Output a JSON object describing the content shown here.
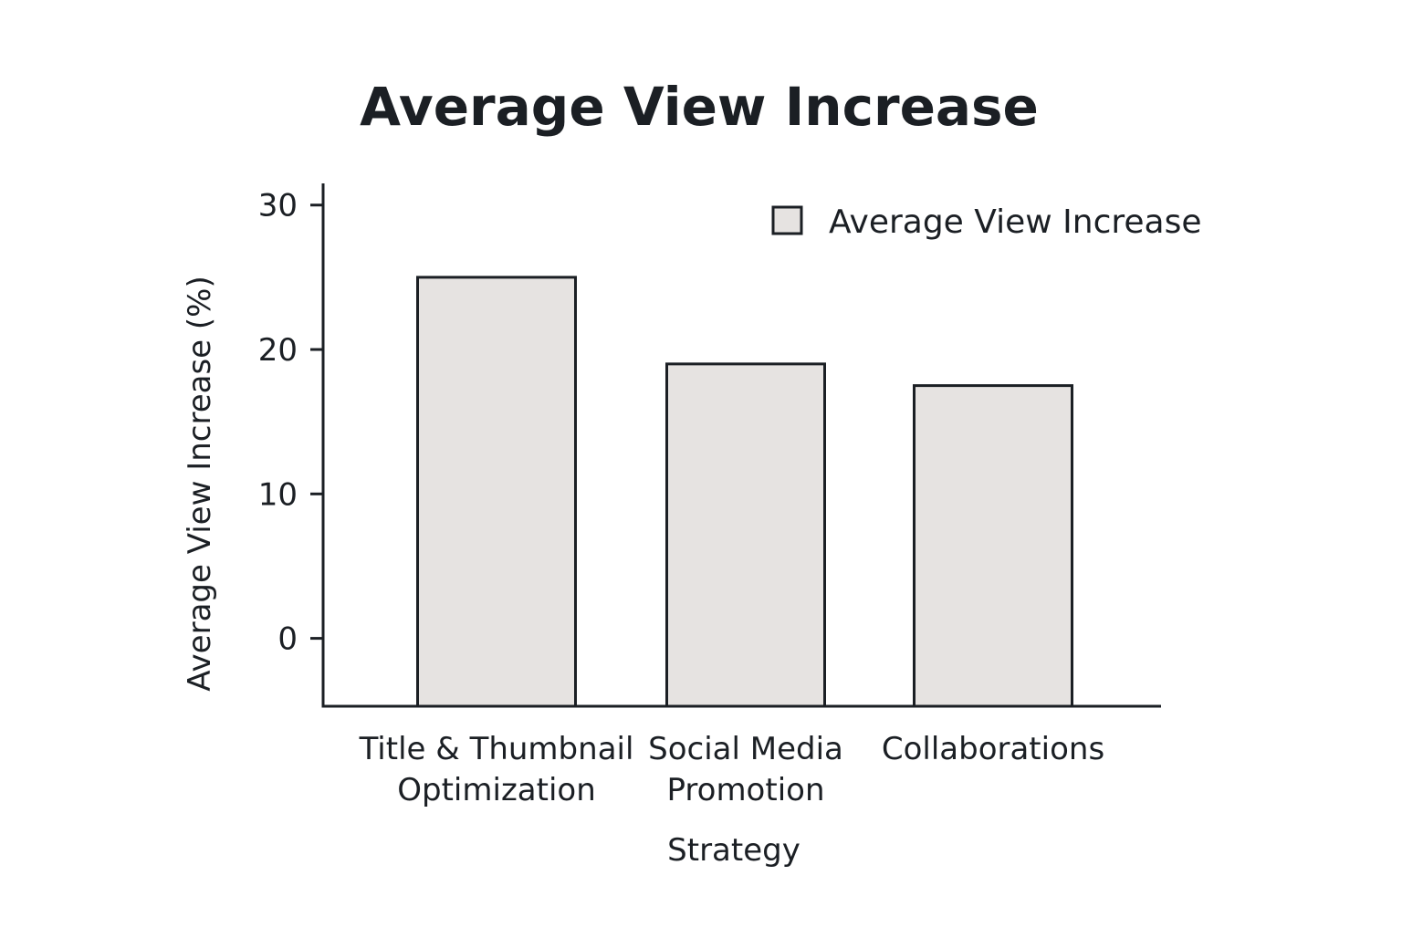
{
  "chart_data": {
    "type": "bar",
    "title": "Average View Increase",
    "xlabel": "Strategy",
    "ylabel": "Average View Increase (%)",
    "categories": [
      [
        "Title & Thumbnail",
        "Optimization"
      ],
      [
        "Social Media",
        "Promotion"
      ],
      [
        "Collaborations"
      ]
    ],
    "series": [
      {
        "name": "Average View Increase",
        "values": [
          25,
          19,
          17.5
        ],
        "color": "#e6e3e1"
      }
    ],
    "ylim": [
      -4.7,
      31.5
    ],
    "yticks": [
      0,
      10,
      20,
      30
    ],
    "grid": false,
    "legend": "top-right",
    "colors": {
      "bar_fill": "#e6e3e1",
      "bar_stroke": "#1b1f24",
      "axis": "#1b1f24",
      "text": "#1b1f24"
    }
  }
}
